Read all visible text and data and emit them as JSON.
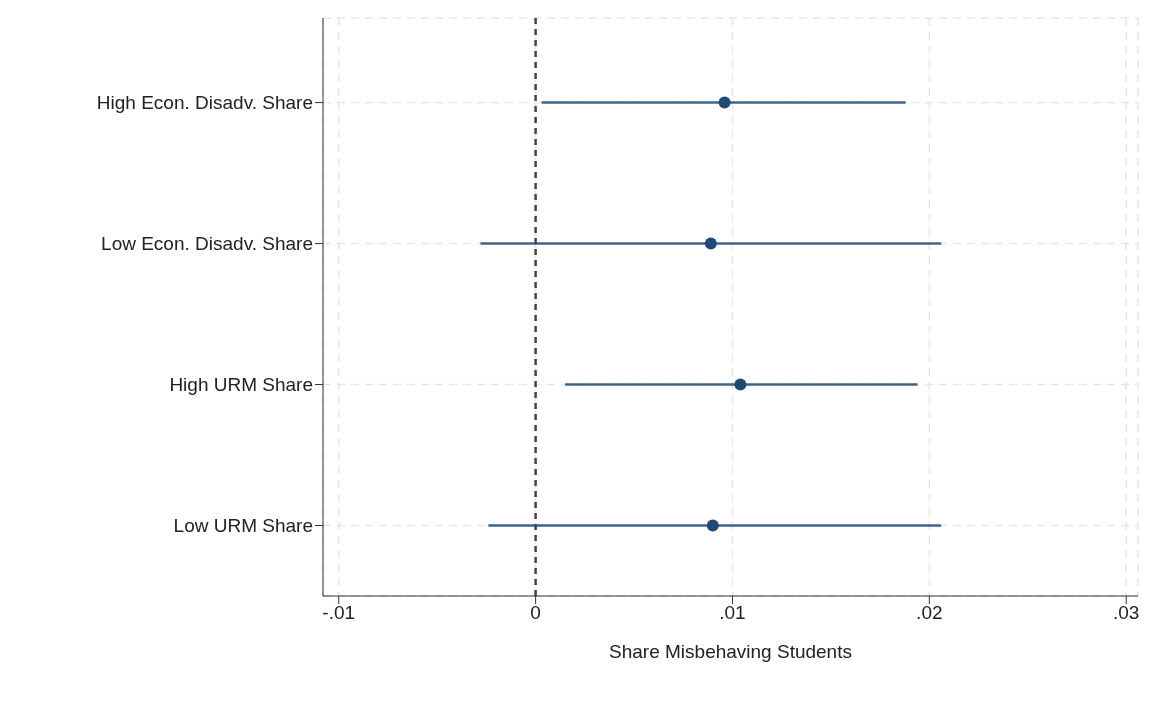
{
  "chart_data": {
    "type": "scatter",
    "orientation": "horizontal",
    "xlabel": "Share Misbehaving Students",
    "categories": [
      "High Econ. Disadv. Share",
      "Low Econ. Disadv. Share",
      "High URM Share",
      "Low URM Share"
    ],
    "series": [
      {
        "color": "#1f4a75",
        "values": [
          0.0096,
          0.0089,
          0.0104,
          0.009
        ],
        "errors": [
          [
            0.0003,
            0.0188
          ],
          [
            -0.0028,
            0.0206
          ],
          [
            0.0015,
            0.0194
          ],
          [
            -0.0024,
            0.0206
          ]
        ]
      }
    ],
    "xlim": [
      -0.0108,
      0.0306
    ],
    "xticks": [
      {
        "value": -0.01,
        "label": "-.01"
      },
      0,
      {
        "value": 0.01,
        "label": ".01"
      },
      {
        "value": 0.02,
        "label": ".02"
      },
      {
        "value": 0.03,
        "label": ".03"
      }
    ],
    "ref_lines": [
      {
        "axis": "x",
        "value": 0,
        "color": "#444444",
        "line_style": "dashed"
      }
    ],
    "grid": true,
    "marker": "circle"
  }
}
